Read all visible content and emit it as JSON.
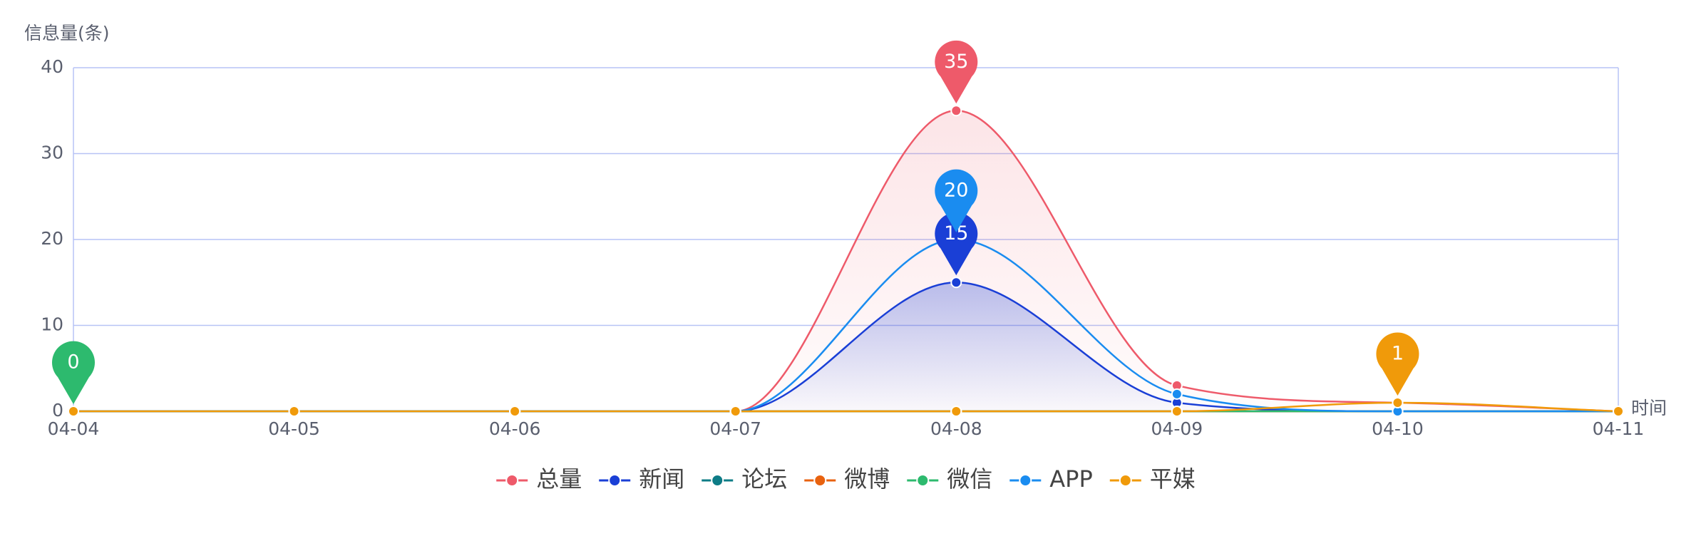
{
  "chart_data": {
    "type": "line",
    "y_axis_label": "信息量(条)",
    "x_axis_label": "时间",
    "categories": [
      "04-04",
      "04-05",
      "04-06",
      "04-07",
      "04-08",
      "04-09",
      "04-10",
      "04-11"
    ],
    "ylim": [
      0,
      40
    ],
    "yticks": [
      0,
      10,
      20,
      30,
      40
    ],
    "grid": true,
    "smooth": true,
    "legend": "bottom",
    "series": [
      {
        "name": "总量",
        "color": "#ee5a6a",
        "values": [
          0,
          0,
          0,
          0,
          35,
          3,
          1,
          0
        ],
        "area": true,
        "mark_max": true
      },
      {
        "name": "新闻",
        "color": "#1a3fd6",
        "values": [
          0,
          0,
          0,
          0,
          15,
          1,
          0,
          0
        ],
        "area": true,
        "mark_max": true
      },
      {
        "name": "论坛",
        "color": "#0e7c86",
        "values": [
          0,
          0,
          0,
          0,
          0,
          0,
          0,
          0
        ]
      },
      {
        "name": "微博",
        "color": "#e8620f",
        "values": [
          0,
          0,
          0,
          0,
          0,
          0,
          0,
          0
        ]
      },
      {
        "name": "微信",
        "color": "#2dba6e",
        "values": [
          0,
          0,
          0,
          0,
          0,
          0,
          0,
          0
        ],
        "mark_max": true
      },
      {
        "name": "APP",
        "color": "#1a8cf0",
        "values": [
          0,
          0,
          0,
          0,
          20,
          2,
          0,
          0
        ],
        "mark_max": true
      },
      {
        "name": "平媒",
        "color": "#f09a0a",
        "values": [
          0,
          0,
          0,
          0,
          0,
          0,
          1,
          0
        ],
        "mark_max": true
      }
    ]
  }
}
